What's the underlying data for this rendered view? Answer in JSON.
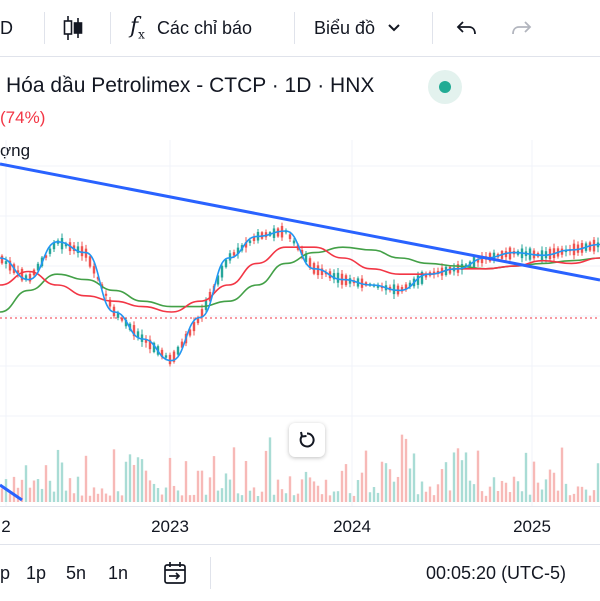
{
  "toolbar": {
    "interval_partial": "D",
    "indicators_label": "Các chỉ báo",
    "chart_type_label": "Biểu đồ"
  },
  "symbol": {
    "title": "Hóa dầu Petrolimex - CTCP · 1D · HNX",
    "change": "74%)",
    "volume_label": "ợng"
  },
  "axis": {
    "x_ticks": [
      "2",
      "2023",
      "2024",
      "2025"
    ]
  },
  "bottom": {
    "ranges": [
      "p",
      "1p",
      "5n",
      "1n"
    ],
    "time": "00:05:20 (UTC-5)"
  },
  "colors": {
    "trendline": "#2962ff",
    "ma_fast": "#f23645",
    "ma_slow": "#43a047",
    "price": "#2196f3",
    "up": "#26a69a",
    "down": "#ef5350",
    "price_line": "#f23645"
  },
  "chart_data": {
    "type": "candlestick",
    "x_ticks": [
      "2",
      "2023",
      "2024",
      "2025"
    ],
    "series": [
      {
        "values": [
          60,
          52,
          66,
          62,
          40,
          30,
          22,
          38,
          60,
          68,
          70,
          56,
          52,
          50,
          48,
          54,
          56,
          60,
          62,
          61,
          63,
          65
        ]
      },
      {
        "values": [
          50,
          55,
          50,
          46,
          44,
          42,
          40,
          44,
          50,
          58,
          64,
          64,
          60,
          56,
          54,
          54,
          56,
          56,
          57,
          59,
          58,
          60
        ]
      },
      {
        "values": [
          40,
          48,
          54,
          52,
          48,
          44,
          42,
          42,
          44,
          50,
          58,
          62,
          64,
          63,
          60,
          58,
          57,
          56,
          57,
          58,
          59,
          60
        ]
      }
    ]
  }
}
